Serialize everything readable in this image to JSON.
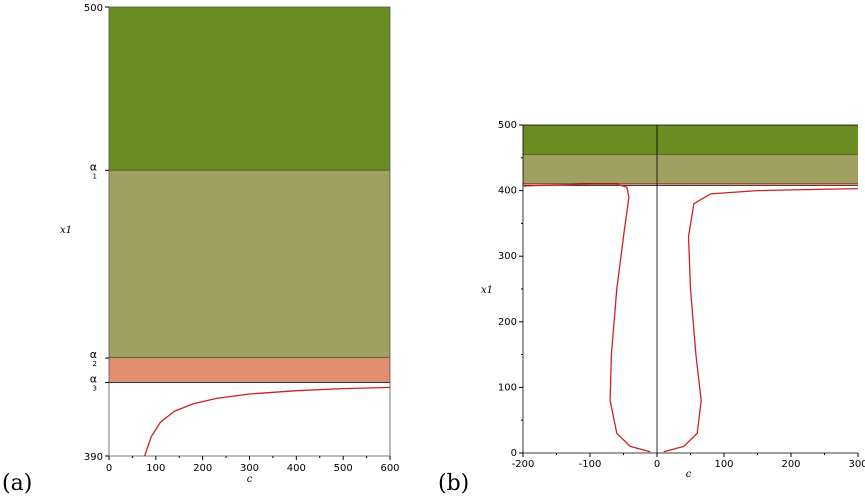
{
  "chart_data": [
    {
      "panel_label": "(a)",
      "type": "area",
      "xlabel": "c",
      "ylabel": "x1",
      "xlim": [
        0,
        600
      ],
      "ylim": [
        390,
        500
      ],
      "x_ticks": [
        "0",
        "100",
        "200",
        "300",
        "400",
        "500",
        "600"
      ],
      "y_ticks_numeric": [
        "500",
        "390"
      ],
      "y_ticks_symbolic": [
        {
          "symbol": "α",
          "sub": "1",
          "value": 460
        },
        {
          "symbol": "α",
          "sub": "2",
          "value": 414
        },
        {
          "symbol": "α",
          "sub": "3",
          "value": 408
        }
      ],
      "regions": [
        {
          "from": 460,
          "to": 500,
          "color": "#6b8e23"
        },
        {
          "from": 414,
          "to": 460,
          "color": "#a0a060"
        },
        {
          "from": 408,
          "to": 414,
          "color": "#e09070"
        }
      ],
      "curve_color": "#cc2222",
      "series": [
        {
          "x": [
            76,
            90,
            110,
            140,
            180,
            230,
            300,
            400,
            500,
            600
          ],
          "y": [
            390.0,
            394.7,
            398.3,
            401.0,
            402.8,
            404.1,
            405.2,
            406.0,
            406.5,
            406.8
          ]
        }
      ]
    },
    {
      "panel_label": "(b)",
      "type": "area",
      "xlabel": "c",
      "ylabel": "x1",
      "xlim": [
        -200,
        300
      ],
      "ylim": [
        0,
        500
      ],
      "x_ticks": [
        "-200",
        "-100",
        "0",
        "100",
        "200",
        "300"
      ],
      "y_ticks": [
        "0",
        "100",
        "200",
        "300",
        "400",
        "500"
      ],
      "regions": [
        {
          "from": 455,
          "to": 500,
          "color": "#6b8e23"
        },
        {
          "from": 411,
          "to": 455,
          "color": "#a0a060"
        },
        {
          "from": 408,
          "to": 411,
          "color": "#e09070"
        }
      ],
      "curve_color": "#cc2222",
      "series": [
        {
          "x": [
            -200,
            -100,
            -60,
            -45,
            -42,
            -50,
            -60,
            -68,
            -70,
            -60,
            -40,
            -10
          ],
          "y": [
            407,
            410,
            410,
            405,
            390,
            330,
            250,
            150,
            80,
            30,
            10,
            2
          ]
        },
        {
          "x": [
            10,
            40,
            60,
            66,
            58,
            50,
            47,
            55,
            80,
            150,
            300
          ],
          "y": [
            2,
            10,
            30,
            80,
            150,
            250,
            330,
            380,
            395,
            400,
            403
          ]
        }
      ]
    }
  ]
}
